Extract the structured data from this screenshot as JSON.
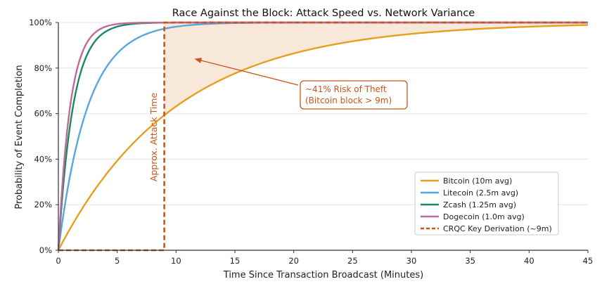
{
  "chart_data": {
    "type": "line",
    "title": "Race Against the Block: Attack Speed vs. Network Variance",
    "xlabel": "Time Since Transaction Broadcast (Minutes)",
    "ylabel": "Probability of Event Completion",
    "xlim": [
      0,
      45
    ],
    "ylim": [
      0,
      1
    ],
    "x_ticks": [
      0,
      5,
      10,
      15,
      20,
      25,
      30,
      35,
      40,
      45
    ],
    "y_ticks": [
      0,
      0.2,
      0.4,
      0.6,
      0.8,
      1.0
    ],
    "x_tick_labels": [
      "0",
      "5",
      "10",
      "15",
      "20",
      "25",
      "30",
      "35",
      "40",
      "45"
    ],
    "y_tick_labels": [
      "0%",
      "20%",
      "40%",
      "60%",
      "80%",
      "100%"
    ],
    "grid": "horizontal",
    "legend_position": "lower-right",
    "x": [
      0,
      0.5,
      1,
      1.5,
      2,
      2.5,
      3,
      4,
      5,
      6,
      7,
      8,
      9,
      10,
      12,
      15,
      20,
      25,
      30,
      35,
      40,
      45
    ],
    "series": [
      {
        "name": "Bitcoin (10m avg)",
        "color": "#e69f1c",
        "style": "solid",
        "values": [
          0,
          0.049,
          0.095,
          0.139,
          0.181,
          0.221,
          0.259,
          0.33,
          0.393,
          0.451,
          0.503,
          0.551,
          0.593,
          0.632,
          0.699,
          0.777,
          0.865,
          0.918,
          0.95,
          0.97,
          0.982,
          0.989
        ]
      },
      {
        "name": "Litecoin (2.5m avg)",
        "color": "#56a8dd",
        "style": "solid",
        "values": [
          0,
          0.181,
          0.33,
          0.451,
          0.551,
          0.632,
          0.699,
          0.798,
          0.865,
          0.909,
          0.939,
          0.959,
          0.973,
          0.982,
          0.992,
          0.998,
          1.0,
          1.0,
          1.0,
          1.0,
          1.0,
          1.0
        ]
      },
      {
        "name": "Zcash (1.25m avg)",
        "color": "#1a8a5e",
        "style": "solid",
        "values": [
          0,
          0.33,
          0.551,
          0.699,
          0.798,
          0.865,
          0.909,
          0.959,
          0.982,
          0.992,
          0.996,
          0.998,
          0.999,
          1.0,
          1.0,
          1.0,
          1.0,
          1.0,
          1.0,
          1.0,
          1.0,
          1.0
        ]
      },
      {
        "name": "Dogecoin (1.0m avg)",
        "color": "#c3679d",
        "style": "solid",
        "values": [
          0,
          0.393,
          0.632,
          0.777,
          0.865,
          0.918,
          0.95,
          0.982,
          0.993,
          0.998,
          0.999,
          1.0,
          1.0,
          1.0,
          1.0,
          1.0,
          1.0,
          1.0,
          1.0,
          1.0,
          1.0,
          1.0
        ]
      },
      {
        "name": "CRQC Key Derivation (~9m)",
        "color": "#c8561a",
        "style": "dashed",
        "x": [
          0,
          9,
          9,
          45
        ],
        "values": [
          0,
          0,
          1,
          1
        ]
      }
    ],
    "shaded_region": {
      "between": [
        "CRQC Key Derivation (~9m)",
        "Bitcoin (10m avg)"
      ],
      "from_x": 9,
      "to_x": 45,
      "color": "#f7e4d4"
    },
    "annotations": [
      {
        "text_lines": [
          "~41% Risk of Theft",
          "(Bitcoin block > 9m)"
        ],
        "color": "#c8561a",
        "arrow_target": [
          11.5,
          0.84
        ]
      },
      {
        "text": "Approx. Attack Time",
        "color": "#c8561a",
        "rotation": -90
      }
    ]
  }
}
